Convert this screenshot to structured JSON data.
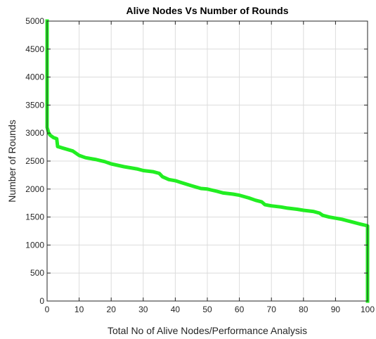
{
  "chart_data": {
    "type": "line",
    "title": "Alive Nodes Vs Number of Rounds",
    "xlabel": "Total No of Alive Nodes/Performance Analysis",
    "ylabel": "Number of Rounds",
    "xlim": [
      0,
      100
    ],
    "ylim": [
      0,
      5000
    ],
    "x_ticks": [
      0,
      10,
      20,
      30,
      40,
      50,
      60,
      70,
      80,
      90,
      100
    ],
    "y_ticks": [
      0,
      500,
      1000,
      1500,
      2000,
      2500,
      3000,
      3500,
      4000,
      4500,
      5000
    ],
    "grid": true,
    "series": [
      {
        "color": "#22ee22",
        "x": [
          0,
          0,
          0.5,
          1,
          2,
          3,
          3.3,
          5,
          8,
          10,
          12,
          15,
          18,
          20,
          24,
          28,
          30,
          33,
          35,
          36,
          38,
          40,
          45,
          48,
          50,
          53,
          55,
          58,
          60,
          63,
          65,
          67,
          68,
          70,
          73,
          75,
          78,
          80,
          83,
          85,
          86,
          88,
          90,
          92,
          94,
          96,
          98,
          99.5,
          100,
          100
        ],
        "y": [
          5000,
          3100,
          3000,
          2960,
          2920,
          2900,
          2760,
          2730,
          2680,
          2600,
          2560,
          2530,
          2490,
          2450,
          2400,
          2360,
          2330,
          2310,
          2280,
          2220,
          2170,
          2150,
          2060,
          2010,
          2000,
          1960,
          1930,
          1910,
          1890,
          1840,
          1800,
          1770,
          1720,
          1700,
          1680,
          1660,
          1640,
          1620,
          1600,
          1570,
          1530,
          1500,
          1480,
          1460,
          1430,
          1400,
          1370,
          1350,
          1340,
          0
        ]
      }
    ]
  }
}
